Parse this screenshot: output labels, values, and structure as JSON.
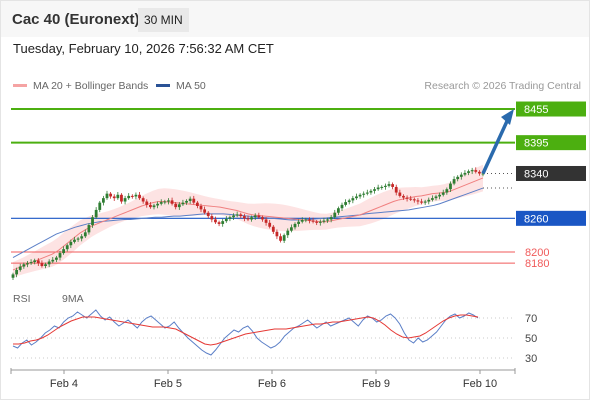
{
  "header": {
    "instrument": "Cac 40 (Euronext)",
    "timeframe": "30 MIN"
  },
  "timestamp": "Tuesday, February 10, 2026 7:56:32 AM CET",
  "legend": {
    "bollinger": "MA 20 + Bollinger Bands",
    "ma50": "MA 50"
  },
  "copyright": "Research © 2026 Trading Central",
  "rsi_legend": {
    "rsi": "RSI",
    "ma9": "9MA"
  },
  "colors": {
    "bull": "#2e7d32",
    "bear": "#c62828",
    "green_level": "#4caf10",
    "blue_level": "#1a56c4",
    "red_level": "#f05a5a",
    "last_price": "#333333",
    "ma20": "#f08080",
    "ma50": "#5b7fc7",
    "band_fill": "#fde3e3",
    "rsi": "#5b7fc7",
    "rsi_ma": "#e53935",
    "arrow": "#2a6aad"
  },
  "chart_data": [
    {
      "type": "candlestick",
      "title": "Cac 40 (Euronext)",
      "x_labels": [
        "Feb 4",
        "Feb 5",
        "Feb 6",
        "Feb 9",
        "Feb 10"
      ],
      "y_range": [
        8150,
        8480
      ],
      "levels": [
        {
          "value": 8455,
          "label": "8455",
          "kind": "resistance"
        },
        {
          "value": 8395,
          "label": "8395",
          "kind": "resistance"
        },
        {
          "value": 8260,
          "label": "8260",
          "kind": "pivot"
        },
        {
          "value": 8200,
          "label": "8200",
          "kind": "support"
        },
        {
          "value": 8180,
          "label": "8180",
          "kind": "support"
        }
      ],
      "last_price": {
        "value": 8340,
        "label": "8340"
      },
      "forecast_target": 8455,
      "close_series": [
        8160,
        8168,
        8174,
        8178,
        8180,
        8182,
        8185,
        8180,
        8175,
        8178,
        8183,
        8186,
        8190,
        8198,
        8205,
        8212,
        8218,
        8222,
        8224,
        8228,
        8235,
        8248,
        8262,
        8275,
        8288,
        8296,
        8304,
        8299,
        8296,
        8302,
        8290,
        8296,
        8300,
        8299,
        8302,
        8296,
        8290,
        8284,
        8280,
        8283,
        8286,
        8289,
        8290,
        8292,
        8286,
        8280,
        8285,
        8288,
        8291,
        8295,
        8288,
        8282,
        8276,
        8270,
        8264,
        8258,
        8253,
        8250,
        8255,
        8259,
        8262,
        8265,
        8267,
        8264,
        8260,
        8258,
        8262,
        8265,
        8262,
        8258,
        8252,
        8245,
        8236,
        8228,
        8220,
        8230,
        8238,
        8244,
        8250,
        8254,
        8257,
        8258,
        8256,
        8254,
        8252,
        8254,
        8256,
        8258,
        8262,
        8270,
        8278,
        8284,
        8289,
        8292,
        8296,
        8299,
        8302,
        8304,
        8306,
        8309,
        8312,
        8315,
        8316,
        8318,
        8321,
        8316,
        8306,
        8300,
        8297,
        8295,
        8294,
        8292,
        8290,
        8288,
        8290,
        8293,
        8296,
        8299,
        8302,
        8306,
        8312,
        8322,
        8330,
        8334,
        8338,
        8341,
        8344,
        8346,
        8343,
        8340,
        8340
      ],
      "ma20_series": [
        8168,
        8172,
        8176,
        8180,
        8184,
        8188,
        8192,
        8196,
        8202,
        8210,
        8218,
        8226,
        8234,
        8240,
        8246,
        8250,
        8254,
        8258,
        8262,
        8266,
        8270,
        8274,
        8278,
        8282,
        8285,
        8288,
        8290,
        8290,
        8289,
        8288,
        8287,
        8286,
        8285,
        8284,
        8283,
        8282,
        8281,
        8280,
        8278,
        8276,
        8274,
        8271,
        8268,
        8266,
        8265,
        8264,
        8263,
        8262,
        8261,
        8260,
        8259,
        8258,
        8257,
        8256,
        8255,
        8254,
        8254,
        8256,
        8258,
        8260,
        8262,
        8264,
        8266,
        8270,
        8274,
        8278,
        8282,
        8286,
        8290,
        8293,
        8295,
        8297,
        8299,
        8300,
        8302,
        8304,
        8305,
        8306,
        8308,
        8312,
        8316,
        8320,
        8324,
        8328,
        8332
      ],
      "ma50_series": [
        8190,
        8196,
        8202,
        8208,
        8214,
        8220,
        8226,
        8232,
        8236,
        8240,
        8244,
        8247,
        8250,
        8252,
        8254,
        8255,
        8256,
        8257,
        8258,
        8258,
        8259,
        8260,
        8261,
        8262,
        8262,
        8263,
        8264,
        8264,
        8265,
        8266,
        8267,
        8268,
        8268,
        8268,
        8268,
        8267,
        8266,
        8265,
        8264,
        8263,
        8262,
        8261,
        8260,
        8259,
        8258,
        8257,
        8257,
        8257,
        8258,
        8259,
        8260,
        8261,
        8262,
        8263,
        8264,
        8265,
        8266,
        8268,
        8269,
        8270,
        8271,
        8272,
        8273,
        8274,
        8275,
        8277,
        8279,
        8281,
        8283,
        8286,
        8290,
        8294,
        8298,
        8302,
        8306,
        8310,
        8314
      ]
    },
    {
      "type": "line",
      "title": "RSI",
      "y_ticks": [
        70,
        50,
        30
      ],
      "y_range": [
        20,
        80
      ],
      "series": [
        {
          "name": "RSI",
          "values": [
            42,
            40,
            45,
            48,
            43,
            46,
            50,
            55,
            58,
            62,
            60,
            66,
            70,
            72,
            76,
            73,
            70,
            74,
            78,
            72,
            68,
            71,
            66,
            62,
            65,
            68,
            64,
            60,
            66,
            70,
            72,
            68,
            64,
            60,
            62,
            66,
            60,
            55,
            50,
            46,
            42,
            38,
            35,
            33,
            38,
            44,
            50,
            54,
            58,
            56,
            60,
            62,
            57,
            50,
            46,
            43,
            40,
            42,
            46,
            52,
            56,
            60,
            62,
            65,
            68,
            64,
            60,
            63,
            66,
            62,
            64,
            66,
            68,
            70,
            66,
            62,
            68,
            72,
            70,
            66,
            68,
            72,
            74,
            70,
            64,
            55,
            48,
            45,
            50,
            46,
            48,
            52,
            56,
            62,
            68,
            72,
            74,
            70,
            72,
            75,
            73,
            70
          ],
          "color": "#5b7fc7"
        },
        {
          "name": "9MA",
          "values": [
            44,
            44,
            45,
            47,
            48,
            50,
            53,
            57,
            61,
            64,
            67,
            69,
            71,
            71,
            71,
            70,
            69,
            68,
            67,
            66,
            65,
            64,
            63,
            62,
            61,
            61,
            61,
            60,
            59,
            56,
            53,
            50,
            47,
            44,
            43,
            44,
            46,
            48,
            50,
            52,
            54,
            55,
            56,
            57,
            58,
            59,
            59,
            59,
            60,
            61,
            62,
            63,
            64,
            64,
            65,
            66,
            66,
            67,
            68,
            69,
            70,
            71,
            70,
            67,
            63,
            58,
            54,
            51,
            50,
            51,
            52,
            55,
            59,
            63,
            67,
            70,
            72,
            73,
            73,
            72,
            71
          ],
          "color": "#e53935"
        }
      ]
    }
  ]
}
